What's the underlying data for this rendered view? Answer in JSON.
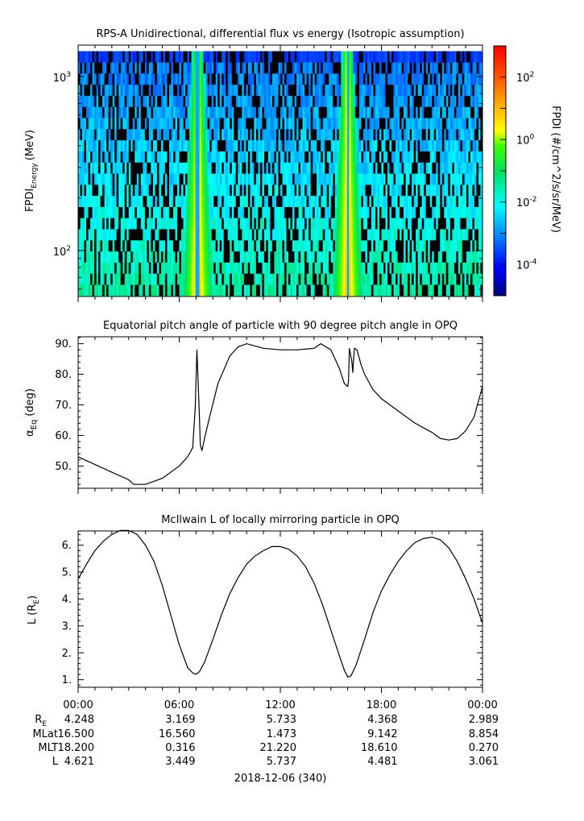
{
  "chart_data": [
    {
      "type": "heatmap",
      "title": "RPS-A Unidirectional, differential flux vs energy (Isotropic assumption)",
      "ylabel_main": "FPDI",
      "ylabel_sub": "Energy",
      "ylabel_unit": "(MeV)",
      "y_scale": "log",
      "ylim": [
        55,
        1500
      ],
      "y_ticks": [
        {
          "base": "10",
          "exp": "3",
          "value": 1000
        },
        {
          "base": "10",
          "exp": "2",
          "value": 100
        }
      ],
      "colorbar": {
        "label": "FPDI (#/cm^2/s/sr/MeV)",
        "scale": "log",
        "range": [
          1e-05,
          1000.0
        ],
        "ticks": [
          {
            "base": "10",
            "exp": "2",
            "value": 100
          },
          {
            "base": "10",
            "exp": "0",
            "value": 1
          },
          {
            "base": "10",
            "exp": "-2",
            "value": 0.01
          },
          {
            "base": "10",
            "exp": "-4",
            "value": 0.0001
          }
        ]
      },
      "features": [
        {
          "desc": "enhanced flux band (radiation belt crossing)",
          "center_hour": 7.1
        },
        {
          "desc": "enhanced flux band (radiation belt crossing)",
          "center_hour": 16.0
        }
      ]
    },
    {
      "type": "line",
      "title": "Equatorial pitch angle of particle with 90 degree pitch angle in OPQ",
      "ylabel_main": "α",
      "ylabel_sub": "Eq",
      "ylabel_unit": "(deg)",
      "ylim": [
        43,
        92
      ],
      "y_ticks": [
        50,
        60,
        70,
        80,
        90
      ],
      "x": [
        0,
        1,
        2,
        3,
        3.3,
        4,
        5,
        6,
        6.5,
        6.8,
        6.95,
        7.05,
        7.2,
        7.25,
        7.35,
        7.5,
        7.8,
        8.3,
        9,
        9.5,
        10,
        11,
        12,
        13,
        14,
        14.4,
        15,
        15.5,
        15.8,
        16,
        16.05,
        16.1,
        16.25,
        16.3,
        16.35,
        16.4,
        16.55,
        16.8,
        17,
        17.5,
        18,
        19,
        20,
        21,
        21.5,
        22,
        22.5,
        23,
        23.5,
        24
      ],
      "values": [
        53,
        50.5,
        48,
        45.5,
        44,
        44,
        46,
        50,
        53,
        56,
        69,
        88,
        66,
        57,
        55,
        59,
        66,
        77,
        86,
        89,
        90,
        88.5,
        88,
        88,
        88.5,
        90,
        88,
        82,
        77,
        76,
        78,
        88.5,
        84,
        80.5,
        85,
        88.5,
        88,
        83,
        80,
        75,
        72,
        68,
        64,
        61,
        59,
        58.5,
        59,
        61.5,
        66,
        76
      ]
    },
    {
      "type": "line",
      "title": "McIlwain L of locally mirroring particle in OPQ",
      "ylabel_main": "L",
      "ylabel_sub": "E",
      "ylabel_unit": "(R  )",
      "ylim": [
        0.75,
        6.5
      ],
      "y_ticks": [
        1,
        2,
        3,
        4,
        5,
        6
      ],
      "x": [
        0,
        0.5,
        1,
        1.5,
        2,
        2.5,
        3,
        3.5,
        4,
        4.5,
        5,
        5.5,
        6,
        6.5,
        6.8,
        7,
        7.2,
        7.5,
        8,
        8.5,
        9,
        9.5,
        10,
        10.5,
        11,
        11.5,
        12,
        12.5,
        13,
        13.5,
        14,
        14.5,
        15,
        15.5,
        15.8,
        16,
        16.2,
        16.5,
        17,
        17.5,
        18,
        18.5,
        19,
        19.5,
        20,
        20.5,
        21,
        21.5,
        22,
        22.5,
        23,
        23.5,
        24
      ],
      "values": [
        4.75,
        5.3,
        5.8,
        6.15,
        6.4,
        6.55,
        6.55,
        6.4,
        6.0,
        5.4,
        4.5,
        3.4,
        2.3,
        1.45,
        1.25,
        1.2,
        1.3,
        1.65,
        2.5,
        3.4,
        4.2,
        4.8,
        5.3,
        5.6,
        5.8,
        5.95,
        5.95,
        5.85,
        5.6,
        5.2,
        4.6,
        3.8,
        2.85,
        1.9,
        1.35,
        1.1,
        1.15,
        1.55,
        2.5,
        3.5,
        4.3,
        4.9,
        5.4,
        5.8,
        6.1,
        6.25,
        6.3,
        6.2,
        5.9,
        5.4,
        4.75,
        4.0,
        3.1
      ]
    }
  ],
  "x_axis": {
    "tick_labels": [
      "00:00",
      "06:00",
      "12:00",
      "18:00",
      "00:00"
    ],
    "date_label": "2018-12-06 (340)"
  },
  "ephemeris": {
    "rows": [
      {
        "label": "R",
        "sub": "E",
        "values": [
          "4.248",
          "3.169",
          "5.733",
          "4.368",
          "2.989"
        ]
      },
      {
        "label": "MLat",
        "sub": "",
        "values": [
          "16.500",
          "16.560",
          "1.473",
          "9.142",
          "8.854"
        ]
      },
      {
        "label": "MLT",
        "sub": "",
        "values": [
          "18.200",
          "0.316",
          "21.220",
          "18.610",
          "0.270"
        ]
      },
      {
        "label": "L",
        "sub": "",
        "values": [
          "4.621",
          "3.449",
          "5.737",
          "4.481",
          "3.061"
        ]
      }
    ]
  }
}
